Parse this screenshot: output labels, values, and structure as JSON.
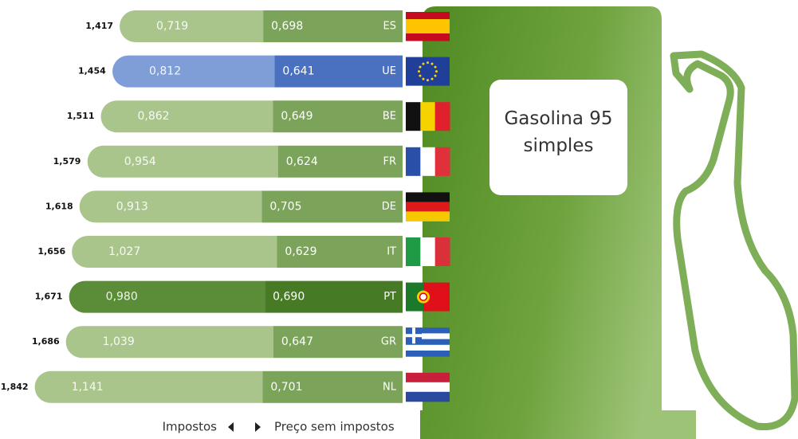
{
  "chart_data": {
    "type": "bar",
    "stacked": true,
    "title": "Gasolina 95 simples",
    "categories": [
      "ES",
      "UE",
      "BE",
      "FR",
      "DE",
      "IT",
      "PT",
      "GR",
      "NL"
    ],
    "series": [
      {
        "name": "Impostos",
        "color": "#a9c58c",
        "colors": [
          "#a9c58c",
          "#7f9dd6",
          "#a9c58c",
          "#a9c58c",
          "#a9c58c",
          "#a9c58c",
          "#5b8c37",
          "#a9c58c",
          "#a9c58c"
        ],
        "values": [
          0.719,
          0.812,
          0.862,
          0.954,
          0.913,
          1.027,
          0.98,
          1.039,
          1.141
        ],
        "value_labels": [
          "0,719",
          "0,812",
          "0,862",
          "0,954",
          "0,913",
          "1,027",
          "0,980",
          "1,039",
          "1,141"
        ]
      },
      {
        "name": "Preço sem impostos",
        "color": "#7ba35a",
        "colors": [
          "#7ba35a",
          "#4a70c0",
          "#7ba35a",
          "#7ba35a",
          "#7ba35a",
          "#7ba35a",
          "#467a25",
          "#7ba35a",
          "#7ba35a"
        ],
        "values": [
          0.698,
          0.641,
          0.649,
          0.624,
          0.705,
          0.629,
          0.69,
          0.647,
          0.701
        ],
        "value_labels": [
          "0,698",
          "0,641",
          "0,649",
          "0,624",
          "0,705",
          "0,629",
          "0,690",
          "0,647",
          "0,701"
        ]
      }
    ],
    "totals": {
      "values": [
        1.417,
        1.454,
        1.511,
        1.579,
        1.618,
        1.656,
        1.671,
        1.686,
        1.842
      ],
      "value_labels": [
        "1,417",
        "1,454",
        "1,511",
        "1,579",
        "1,618",
        "1,656",
        "1,671",
        "1,686",
        "1,842"
      ]
    }
  }
}
